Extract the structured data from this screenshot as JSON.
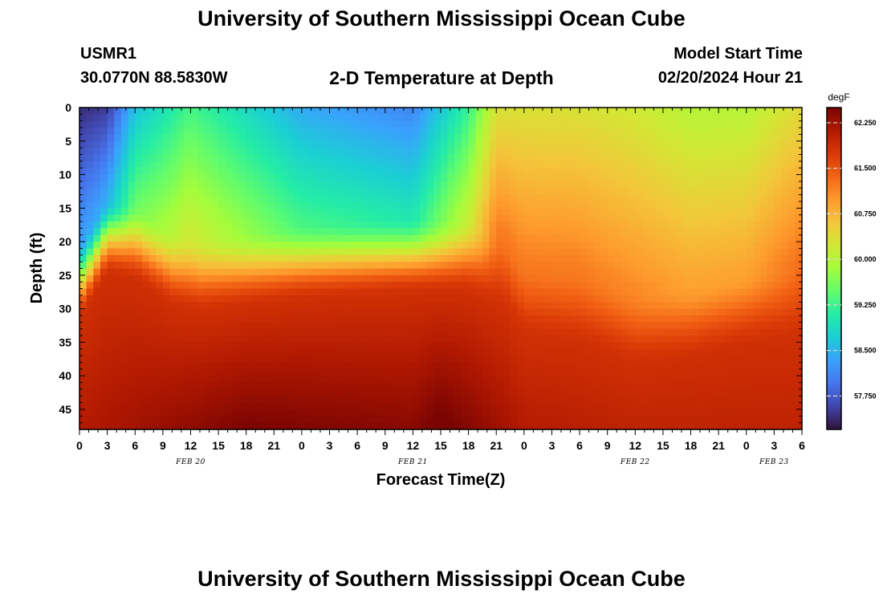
{
  "header": {
    "title": "University of Southern Mississippi Ocean Cube",
    "station_id": "USMR1",
    "coords": "30.0770N  88.5830W",
    "plot_title": "2-D Temperature at Depth",
    "model_label": "Model Start Time",
    "model_start": "02/20/2024 Hour 21"
  },
  "footer": {
    "title": "University of Southern Mississippi Ocean Cube"
  },
  "chart_data": {
    "type": "heatmap",
    "xlabel": "Forecast Time(Z)",
    "ylabel": "Depth (ft)",
    "x_tick_labels": [
      "0",
      "3",
      "6",
      "9",
      "12",
      "15",
      "18",
      "21",
      "0",
      "3",
      "6",
      "9",
      "12",
      "15",
      "18",
      "21",
      "0",
      "3",
      "6",
      "9",
      "12",
      "15",
      "18",
      "21",
      "0",
      "3",
      "6"
    ],
    "day_labels": [
      {
        "label": "FEB 20",
        "hour": 12
      },
      {
        "label": "FEB 21",
        "hour": 36
      },
      {
        "label": "FEB 22",
        "hour": 60
      },
      {
        "label": "FEB 23",
        "hour": 75
      }
    ],
    "x_range_hours": [
      0,
      78
    ],
    "y_ticks": [
      0,
      5,
      10,
      15,
      20,
      25,
      30,
      35,
      40,
      45
    ],
    "y_range": [
      0,
      48
    ],
    "colorbar": {
      "units": "degF",
      "ticks": [
        "62.250",
        "61.500",
        "60.750",
        "60.000",
        "59.250",
        "58.500",
        "57.750"
      ],
      "tick_values": [
        62.25,
        61.5,
        60.75,
        60.0,
        59.25,
        58.5,
        57.75
      ],
      "range": [
        57.2,
        62.5
      ]
    },
    "thermocline_depth_ft": [
      {
        "hour": 0,
        "depth": 28
      },
      {
        "hour": 3,
        "depth": 21
      },
      {
        "hour": 6,
        "depth": 22
      },
      {
        "hour": 10,
        "depth": 26
      },
      {
        "hour": 13,
        "depth": 27
      },
      {
        "hour": 24,
        "depth": 25
      },
      {
        "hour": 36,
        "depth": 24
      },
      {
        "hour": 42,
        "depth": 24
      },
      {
        "hour": 46,
        "depth": 27
      },
      {
        "hour": 48,
        "depth": 31
      },
      {
        "hour": 54,
        "depth": 32
      },
      {
        "hour": 60,
        "depth": 35
      },
      {
        "hour": 66,
        "depth": 34
      },
      {
        "hour": 72,
        "depth": 32
      },
      {
        "hour": 78,
        "depth": 31
      }
    ],
    "surface_temp_degF": [
      {
        "hour": 0,
        "value": 57.4
      },
      {
        "hour": 3,
        "value": 57.5
      },
      {
        "hour": 6,
        "value": 58.6
      },
      {
        "hour": 12,
        "value": 59.3
      },
      {
        "hour": 24,
        "value": 58.4
      },
      {
        "hour": 36,
        "value": 58.1
      },
      {
        "hour": 42,
        "value": 59.2
      },
      {
        "hour": 45,
        "value": 60.3
      },
      {
        "hour": 54,
        "value": 60.3
      },
      {
        "hour": 60,
        "value": 60.2
      },
      {
        "hour": 66,
        "value": 60.0
      },
      {
        "hour": 72,
        "value": 60.0
      },
      {
        "hour": 78,
        "value": 60.4
      }
    ],
    "bottom_temp_degF": [
      {
        "hour": 0,
        "value": 62.1
      },
      {
        "hour": 18,
        "value": 62.5
      },
      {
        "hour": 36,
        "value": 62.4
      },
      {
        "hour": 39,
        "value": 62.6
      },
      {
        "hour": 48,
        "value": 62.1
      },
      {
        "hour": 60,
        "value": 62.0
      },
      {
        "hour": 78,
        "value": 62.0
      }
    ]
  },
  "colors": {
    "ramp": [
      "#30123b",
      "#4145ab",
      "#4675ed",
      "#39a2fc",
      "#1bcfd4",
      "#24eca6",
      "#61fc6c",
      "#a4fc3b",
      "#d1e834",
      "#f3c63a",
      "#fe9b2d",
      "#f36315",
      "#d93806",
      "#b11901",
      "#7a0402"
    ]
  }
}
